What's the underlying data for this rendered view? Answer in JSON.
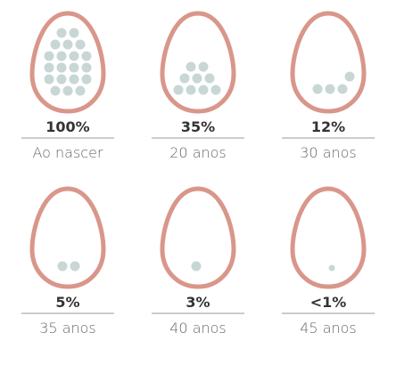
{
  "items": [
    {
      "percent": "100%",
      "age": "Ao nascer"
    },
    {
      "percent": "35%",
      "age": "20 anos"
    },
    {
      "percent": "12%",
      "age": "30 anos"
    },
    {
      "percent": "5%",
      "age": "35 anos"
    },
    {
      "percent": "3%",
      "age": "40 anos"
    },
    {
      "percent": "<1%",
      "age": "45 anos"
    }
  ]
}
